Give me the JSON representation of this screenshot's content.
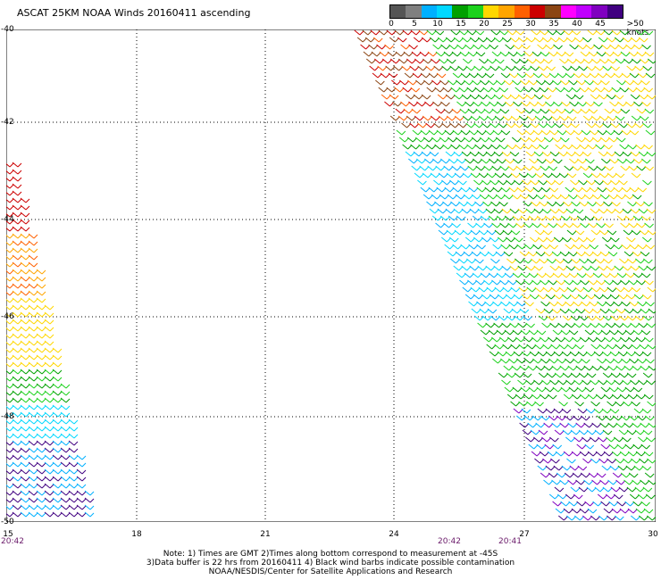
{
  "title": "ASCAT 25KM NOAA Winds 20160411 ascending",
  "legend": {
    "labels": [
      "0",
      "5",
      "10",
      "15",
      "20",
      "25",
      "30",
      "35",
      "40",
      "45",
      ">50 knots"
    ],
    "colors": [
      "#555555",
      "#7f7f7f",
      "#00b0ff",
      "#00d8ff",
      "#00a000",
      "#1cd21c",
      "#ffd700",
      "#ffa500",
      "#ff6000",
      "#cc0000",
      "#8b4513",
      "#ff00ff",
      "#c000ff",
      "#8000c0",
      "#400080"
    ]
  },
  "map": {
    "lat_labels": [
      "-40",
      "-42",
      "-44",
      "-46",
      "-48",
      "-50"
    ],
    "lon_labels": [
      "15",
      "18",
      "21",
      "24",
      "27",
      "30"
    ],
    "time_labels": [
      "20:42",
      "20:42",
      "20:41"
    ]
  },
  "notes": [
    "Note: 1) Times are GMT 2)Times along bottom correspond to measurement at -45S",
    "3)Data buffer is 22 hrs from 20160411 4) Black wind barbs indicate possible contamination",
    "NOAA/NESDIS/Center for Satellite Applications and Research"
  ]
}
